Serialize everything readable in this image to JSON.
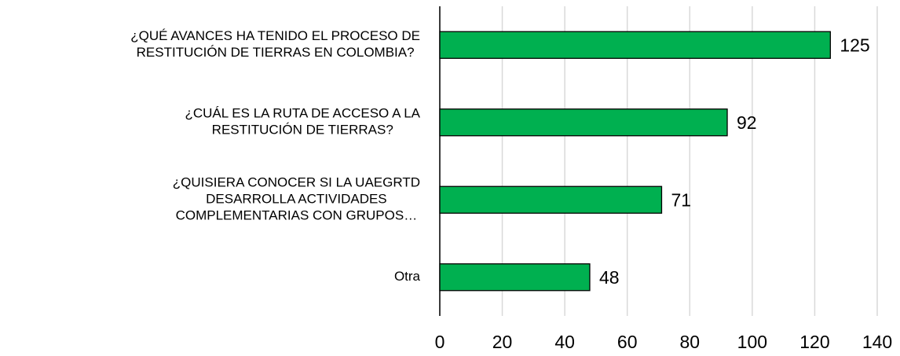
{
  "chart_data": {
    "type": "bar",
    "orientation": "horizontal",
    "categories": [
      [
        "¿QUÉ AVANCES HA TENIDO EL PROCESO DE",
        "RESTITUCIÓN DE TIERRAS EN COLOMBIA?"
      ],
      [
        "¿CUÁL ES LA RUTA DE ACCESO A LA",
        "RESTITUCIÓN DE TIERRAS?"
      ],
      [
        "¿QUISIERA CONOCER SI LA UAEGRTD",
        "DESARROLLA ACTIVIDADES",
        "COMPLEMENTARIAS CON GRUPOS…"
      ],
      [
        "Otra"
      ]
    ],
    "values": [
      125,
      92,
      71,
      48
    ],
    "color": "#00b050",
    "xlim": [
      0,
      140
    ],
    "xticks": [
      0,
      20,
      40,
      60,
      80,
      100,
      120,
      140
    ],
    "grid": true
  }
}
